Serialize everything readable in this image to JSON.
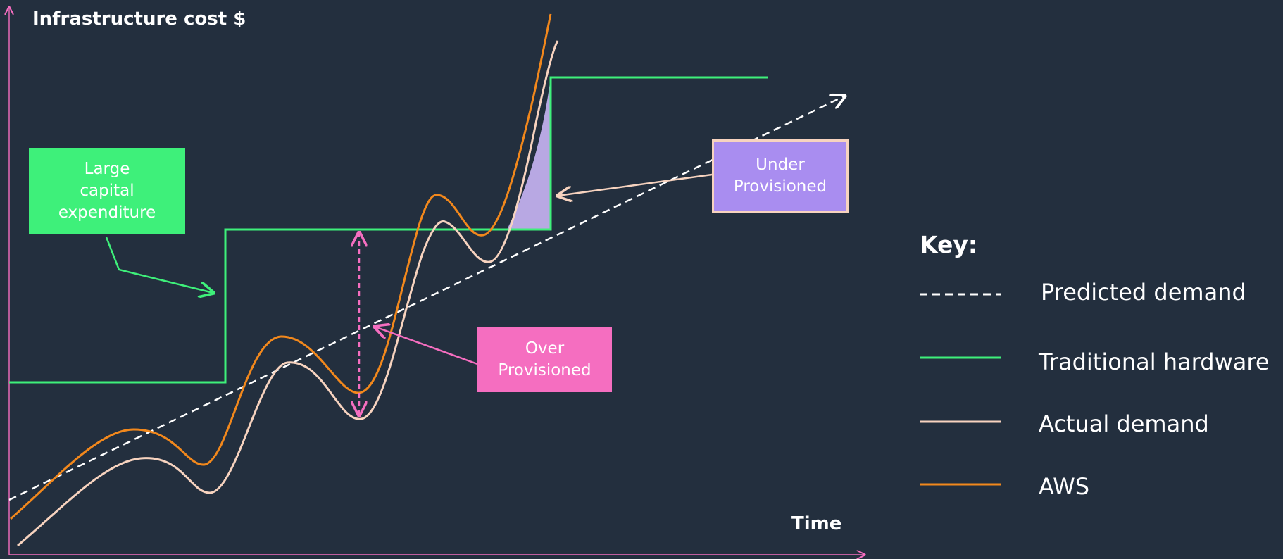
{
  "y_axis_label": "Infrastructure cost $",
  "x_axis_label": "Time",
  "annotations": {
    "capex": "Large\ncapital\nexpenditure",
    "under": "Under\nProvisioned",
    "over": "Over\nProvisioned"
  },
  "key": {
    "title": "Key:",
    "items": [
      {
        "label": "Predicted demand",
        "style": "dashed",
        "color": "#ffffff"
      },
      {
        "label": "Traditional hardware",
        "style": "solid",
        "color": "#3ef07a"
      },
      {
        "label": "Actual demand",
        "style": "solid",
        "color": "#f7d3bf"
      },
      {
        "label": "AWS",
        "style": "solid",
        "color": "#f2881c"
      }
    ]
  },
  "colors": {
    "background": "#232f3e",
    "axis": "#f56ec0",
    "predicted": "#ffffff",
    "traditional": "#3ef07a",
    "actual": "#f7d3bf",
    "aws": "#f2881c",
    "over_provisioned": "#f56ec0",
    "under_provisioned": "#a98df0"
  }
}
